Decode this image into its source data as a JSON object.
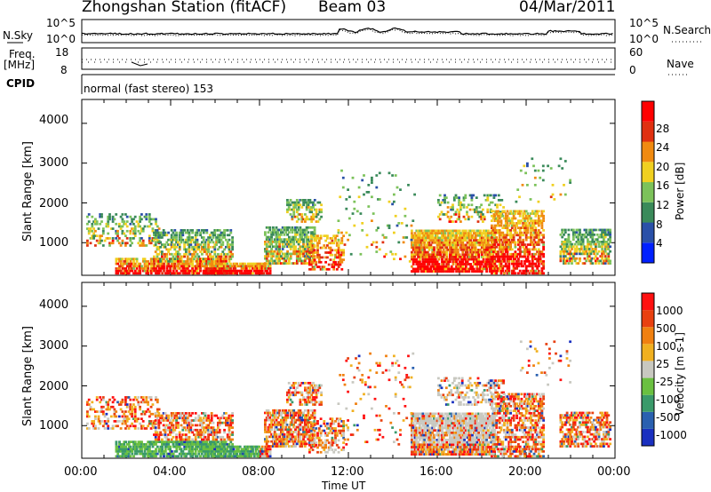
{
  "header": {
    "station": "Zhongshan Station (fitACF)",
    "beam": "Beam 03",
    "date": "04/Mar/2011"
  },
  "top_labels": {
    "nsky": "N.Sky",
    "nsky_exp_low": "10^0",
    "nsky_exp_high": "10^5",
    "nsearch": "N.Search",
    "freq": "Freq.",
    "freq_unit": "[MHz]",
    "freq_low": "8",
    "freq_high": "18",
    "nave": "Nave",
    "nave_low": "0",
    "nave_high": "60",
    "cpid": "CPID",
    "mode_text": "normal (fast stereo) 153"
  },
  "colors": {
    "power_scale": [
      "#0020ff",
      "#2a50a8",
      "#3a8a5a",
      "#7cc25a",
      "#f0d020",
      "#f08a10",
      "#e03010",
      "#ff0000"
    ],
    "velocity_scale": [
      "#1a30c0",
      "#2a60b0",
      "#3a9a6a",
      "#6ac040",
      "#c8c8c0",
      "#f0b020",
      "#f08010",
      "#e84010",
      "#ff1010"
    ]
  },
  "chart_data": [
    {
      "type": "heatmap",
      "panel": "power",
      "ylabel": "Slant Range [km]",
      "yticks": [
        1000,
        2000,
        3000,
        4000
      ],
      "ylim": [
        180,
        4600
      ],
      "colorbar_label": "Power [dB]",
      "colorbar_ticks": [
        "4",
        "8",
        "12",
        "16",
        "20",
        "24",
        "28"
      ]
    },
    {
      "type": "heatmap",
      "panel": "velocity",
      "ylabel": "Slant Range [km]",
      "yticks": [
        1000,
        2000,
        3000,
        4000
      ],
      "ylim": [
        180,
        4600
      ],
      "colorbar_label": "Velocity [m s-1]",
      "colorbar_ticks": [
        "-1000",
        "-500",
        "-100",
        "-25",
        "25",
        "100",
        "500",
        "1000"
      ]
    }
  ],
  "time_axis": {
    "label": "Time UT",
    "ticks": [
      "00:00",
      "04:00",
      "08:00",
      "12:00",
      "16:00",
      "20:00",
      "00:00"
    ]
  }
}
